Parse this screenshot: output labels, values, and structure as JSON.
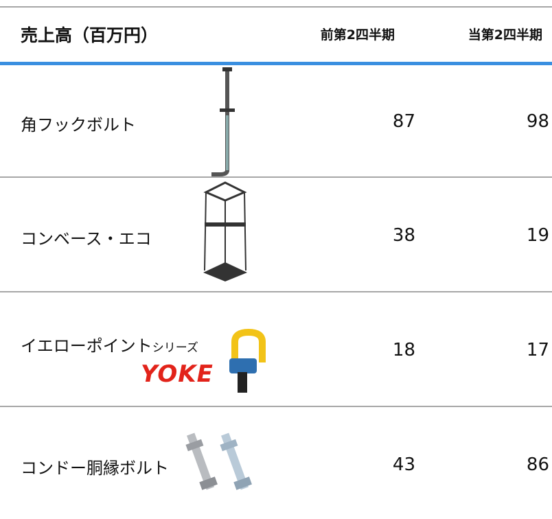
{
  "table": {
    "header": [
      "売上高（百万円）",
      "前第2四半期",
      "当第2四半期"
    ],
    "rows": [
      {
        "name": "角フックボルト",
        "prev": 87,
        "curr": 98
      },
      {
        "name": "コンベース・エコ",
        "prev": 38,
        "curr": 19
      },
      {
        "name": "イエローポイント",
        "suffix": "シリーズ",
        "logo": "YOKE",
        "prev": 18,
        "curr": 17
      },
      {
        "name": "コンドー胴縁ボルト",
        "prev": 43,
        "curr": 86
      }
    ]
  }
}
